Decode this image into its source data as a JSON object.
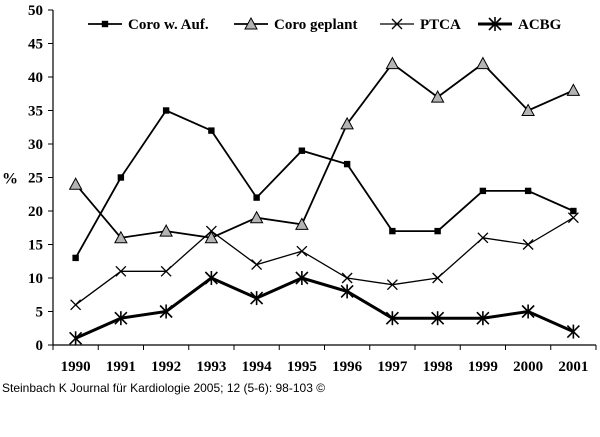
{
  "chart_data": {
    "type": "line",
    "ylabel": "%",
    "ylim": [
      0,
      50
    ],
    "yticks": [
      0,
      5,
      10,
      15,
      20,
      25,
      30,
      35,
      40,
      45,
      50
    ],
    "categories": [
      "1990",
      "1991",
      "1992",
      "1993",
      "1994",
      "1995",
      "1996",
      "1997",
      "1998",
      "1999",
      "2000",
      "2001"
    ],
    "grid": false,
    "legend_position": "top",
    "series": [
      {
        "name": "Coro w. Auf.",
        "marker": "square",
        "values": [
          13,
          25,
          35,
          32,
          22,
          29,
          27,
          17,
          17,
          23,
          23,
          20
        ]
      },
      {
        "name": "Coro geplant",
        "marker": "triangle",
        "values": [
          24,
          16,
          17,
          16,
          19,
          18,
          33,
          42,
          37,
          42,
          35,
          38
        ]
      },
      {
        "name": "PTCA",
        "marker": "x",
        "values": [
          6,
          11,
          11,
          17,
          12,
          14,
          10,
          9,
          10,
          16,
          15,
          19
        ]
      },
      {
        "name": "ACBG",
        "marker": "asterisk",
        "values": [
          1,
          4,
          5,
          10,
          7,
          10,
          8,
          4,
          4,
          4,
          5,
          2
        ]
      }
    ]
  },
  "credit": "Steinbach K Journal für Kardiologie 2005; 12 (5-6): 98-103 ©"
}
